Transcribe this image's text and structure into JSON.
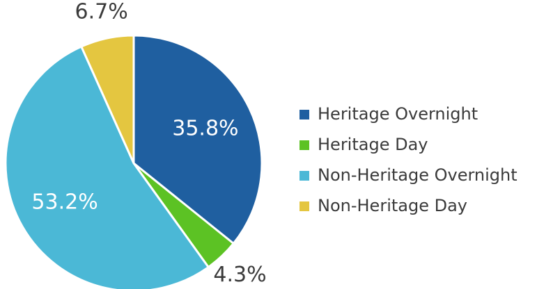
{
  "chart_data": {
    "type": "pie",
    "categories": [
      "Heritage Overnight",
      "Heritage Day",
      "Non-Heritage Overnight",
      "Non-Heritage Day"
    ],
    "values": [
      35.8,
      4.3,
      53.2,
      6.7
    ],
    "value_labels": [
      "35.8%",
      "4.3%",
      "53.2%",
      "6.7%"
    ],
    "colors": [
      "#1f5fa0",
      "#5cc224",
      "#4bb8d6",
      "#e4c640"
    ],
    "legend": "right"
  }
}
